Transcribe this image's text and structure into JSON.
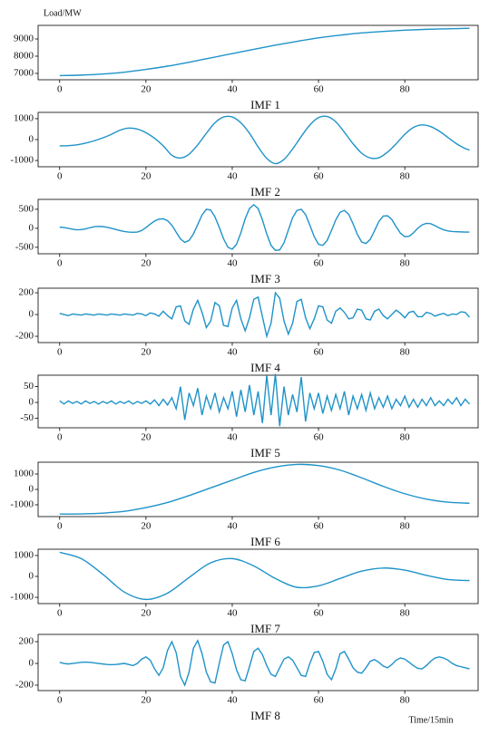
{
  "chart_data": [
    {
      "type": "line",
      "ylabel": "Load/MW",
      "xlabel": "IMF 1",
      "color": "#1f93c9",
      "x": [
        0,
        5,
        10,
        15,
        20,
        25,
        30,
        35,
        40,
        45,
        50,
        55,
        60,
        65,
        70,
        75,
        80,
        85,
        90,
        95
      ],
      "values": [
        6870,
        6900,
        6960,
        7070,
        7230,
        7420,
        7650,
        7900,
        8150,
        8400,
        8640,
        8860,
        9060,
        9220,
        9350,
        9440,
        9510,
        9560,
        9590,
        9620
      ],
      "xlim": [
        -5,
        97
      ],
      "xticks": [
        0,
        20,
        40,
        60,
        80
      ],
      "ylim": [
        6630,
        9790
      ],
      "yticks": [
        7000,
        8000,
        9000
      ]
    },
    {
      "type": "line",
      "xlabel": "IMF 2",
      "color": "#1f93c9",
      "x": [
        0,
        2,
        4,
        6,
        8,
        10,
        12,
        14,
        16,
        18,
        20,
        22,
        24,
        26,
        28,
        30,
        32,
        34,
        36,
        38,
        40,
        42,
        44,
        46,
        48,
        50,
        52,
        54,
        56,
        58,
        60,
        62,
        64,
        66,
        68,
        70,
        72,
        74,
        76,
        78,
        80,
        82,
        84,
        86,
        88,
        90,
        92,
        94,
        95
      ],
      "values": [
        -300,
        -290,
        -250,
        -170,
        -60,
        80,
        250,
        450,
        550,
        500,
        330,
        60,
        -300,
        -750,
        -880,
        -700,
        -250,
        300,
        800,
        1080,
        1080,
        800,
        300,
        -350,
        -900,
        -1150,
        -950,
        -450,
        150,
        700,
        1050,
        1100,
        850,
        350,
        -200,
        -650,
        -880,
        -870,
        -600,
        -200,
        250,
        580,
        700,
        620,
        400,
        100,
        -200,
        -430,
        -500
      ],
      "xlim": [
        -5,
        97
      ],
      "xticks": [
        0,
        20,
        40,
        60,
        80
      ],
      "ylim": [
        -1300,
        1300
      ],
      "yticks": [
        -1000,
        0,
        1000
      ]
    },
    {
      "type": "line",
      "xlabel": "IMF 3",
      "color": "#1f93c9",
      "x": [
        0,
        1,
        2,
        3,
        4,
        5,
        6,
        7,
        8,
        9,
        10,
        11,
        12,
        13,
        14,
        15,
        16,
        17,
        18,
        19,
        20,
        21,
        22,
        23,
        24,
        25,
        26,
        27,
        28,
        29,
        30,
        31,
        32,
        33,
        34,
        35,
        36,
        37,
        38,
        39,
        40,
        41,
        42,
        43,
        44,
        45,
        46,
        47,
        48,
        49,
        50,
        51,
        52,
        53,
        54,
        55,
        56,
        57,
        58,
        59,
        60,
        61,
        62,
        63,
        64,
        65,
        66,
        67,
        68,
        69,
        70,
        71,
        72,
        73,
        74,
        75,
        76,
        77,
        78,
        79,
        80,
        81,
        82,
        83,
        84,
        85,
        86,
        87,
        88,
        89,
        90,
        91,
        92,
        93,
        94,
        95
      ],
      "values": [
        30,
        20,
        0,
        -25,
        -40,
        -35,
        -15,
        15,
        40,
        50,
        45,
        25,
        0,
        -30,
        -60,
        -85,
        -100,
        -105,
        -100,
        -60,
        20,
        110,
        190,
        240,
        250,
        200,
        80,
        -100,
        -280,
        -370,
        -320,
        -150,
        100,
        350,
        500,
        480,
        300,
        20,
        -280,
        -500,
        -550,
        -420,
        -120,
        250,
        520,
        620,
        520,
        220,
        -150,
        -450,
        -580,
        -570,
        -380,
        -50,
        280,
        470,
        500,
        360,
        80,
        -220,
        -420,
        -450,
        -320,
        -60,
        220,
        420,
        470,
        370,
        120,
        -160,
        -360,
        -400,
        -290,
        -60,
        180,
        320,
        330,
        230,
        40,
        -130,
        -220,
        -210,
        -120,
        0,
        90,
        130,
        120,
        70,
        10,
        -40,
        -70,
        -85,
        -90,
        -95,
        -100,
        -100
      ],
      "xlim": [
        -5,
        97
      ],
      "xticks": [
        0,
        20,
        40,
        60,
        80
      ],
      "ylim": [
        -670,
        760
      ],
      "yticks": [
        -500,
        0,
        500
      ]
    },
    {
      "type": "line",
      "xlabel": "IMF 4",
      "color": "#1f93c9",
      "x": [
        0,
        1,
        2,
        3,
        4,
        5,
        6,
        7,
        8,
        9,
        10,
        11,
        12,
        13,
        14,
        15,
        16,
        17,
        18,
        19,
        20,
        21,
        22,
        23,
        24,
        25,
        26,
        27,
        28,
        29,
        30,
        31,
        32,
        33,
        34,
        35,
        36,
        37,
        38,
        39,
        40,
        41,
        42,
        43,
        44,
        45,
        46,
        47,
        48,
        49,
        50,
        51,
        52,
        53,
        54,
        55,
        56,
        57,
        58,
        59,
        60,
        61,
        62,
        63,
        64,
        65,
        66,
        67,
        68,
        69,
        70,
        71,
        72,
        73,
        74,
        75,
        76,
        77,
        78,
        79,
        80,
        81,
        82,
        83,
        84,
        85,
        86,
        87,
        88,
        89,
        90,
        91,
        92,
        93,
        94,
        95
      ],
      "values": [
        10,
        0,
        -10,
        5,
        0,
        -5,
        5,
        0,
        -5,
        5,
        0,
        -5,
        5,
        0,
        -5,
        5,
        0,
        -5,
        10,
        5,
        -10,
        15,
        5,
        -15,
        30,
        -10,
        -40,
        70,
        80,
        -60,
        -90,
        50,
        130,
        20,
        -120,
        -60,
        110,
        80,
        -100,
        -110,
        60,
        130,
        -40,
        -150,
        -30,
        140,
        160,
        -20,
        -200,
        -80,
        200,
        150,
        -60,
        -180,
        -80,
        120,
        140,
        -30,
        -130,
        -40,
        80,
        70,
        -50,
        -80,
        30,
        60,
        20,
        -40,
        -30,
        50,
        40,
        -40,
        -50,
        30,
        50,
        -10,
        -40,
        0,
        40,
        10,
        -30,
        20,
        30,
        -20,
        -20,
        20,
        10,
        -15,
        0,
        10,
        -10,
        5,
        0,
        25,
        20,
        -25
      ],
      "xlim": [
        -5,
        97
      ],
      "xticks": [
        0,
        20,
        40,
        60,
        80
      ],
      "ylim": [
        -258,
        242
      ],
      "yticks": [
        -200,
        0,
        200
      ]
    },
    {
      "type": "line",
      "xlabel": "IMF 5",
      "color": "#1f93c9",
      "x": [
        0,
        1,
        2,
        3,
        4,
        5,
        6,
        7,
        8,
        9,
        10,
        11,
        12,
        13,
        14,
        15,
        16,
        17,
        18,
        19,
        20,
        21,
        22,
        23,
        24,
        25,
        26,
        27,
        28,
        29,
        30,
        31,
        32,
        33,
        34,
        35,
        36,
        37,
        38,
        39,
        40,
        41,
        42,
        43,
        44,
        45,
        46,
        47,
        48,
        49,
        50,
        51,
        52,
        53,
        54,
        55,
        56,
        57,
        58,
        59,
        60,
        61,
        62,
        63,
        64,
        65,
        66,
        67,
        68,
        69,
        70,
        71,
        72,
        73,
        74,
        75,
        76,
        77,
        78,
        79,
        80,
        81,
        82,
        83,
        84,
        85,
        86,
        87,
        88,
        89,
        90,
        91,
        92,
        93,
        94,
        95
      ],
      "values": [
        5,
        -5,
        5,
        -3,
        3,
        -5,
        5,
        -3,
        3,
        -5,
        3,
        -3,
        5,
        -5,
        3,
        -3,
        5,
        -5,
        3,
        -3,
        5,
        -5,
        8,
        -10,
        10,
        -8,
        15,
        -20,
        50,
        -55,
        30,
        -10,
        45,
        -40,
        20,
        -20,
        30,
        -30,
        15,
        -20,
        35,
        -45,
        40,
        -30,
        55,
        -40,
        35,
        -65,
        85,
        -40,
        90,
        -75,
        50,
        -40,
        25,
        -30,
        80,
        -60,
        30,
        -20,
        30,
        -35,
        20,
        -25,
        25,
        -20,
        35,
        -40,
        20,
        -20,
        25,
        -25,
        30,
        -20,
        15,
        -15,
        20,
        -20,
        10,
        -10,
        20,
        -15,
        10,
        -15,
        10,
        -10,
        15,
        -10,
        5,
        -10,
        10,
        -5,
        15,
        -10,
        10,
        -5
      ],
      "xlim": [
        -5,
        97
      ],
      "xticks": [
        0,
        20,
        40,
        60,
        80
      ],
      "ylim": [
        -80,
        86
      ],
      "yticks": [
        -50,
        0,
        50
      ]
    },
    {
      "type": "line",
      "xlabel": "IMF 6",
      "color": "#1f93c9",
      "x": [
        0,
        5,
        10,
        15,
        20,
        25,
        30,
        35,
        40,
        45,
        50,
        55,
        60,
        65,
        70,
        75,
        80,
        85,
        90,
        95
      ],
      "values": [
        -1600,
        -1590,
        -1540,
        -1420,
        -1180,
        -850,
        -400,
        100,
        600,
        1100,
        1450,
        1620,
        1550,
        1250,
        750,
        200,
        -280,
        -630,
        -830,
        -900
      ],
      "xlim": [
        -5,
        97
      ],
      "xticks": [
        0,
        20,
        40,
        60,
        80
      ],
      "ylim": [
        -1765,
        1765
      ],
      "yticks": [
        -1000,
        0,
        1000
      ]
    },
    {
      "type": "line",
      "xlabel": "IMF 7",
      "color": "#1f93c9",
      "x": [
        0,
        5,
        10,
        15,
        20,
        25,
        30,
        35,
        40,
        45,
        50,
        55,
        60,
        65,
        70,
        75,
        80,
        85,
        90,
        95
      ],
      "values": [
        1150,
        850,
        100,
        -750,
        -1100,
        -800,
        -50,
        650,
        850,
        500,
        -100,
        -520,
        -450,
        -100,
        250,
        400,
        300,
        50,
        -150,
        -200
      ],
      "xlim": [
        -5,
        97
      ],
      "xticks": [
        0,
        20,
        40,
        60,
        80
      ],
      "ylim": [
        -1300,
        1300
      ],
      "yticks": [
        -1000,
        0,
        1000
      ]
    },
    {
      "type": "line",
      "xlabel": "IMF 8",
      "note": "Time/15min",
      "color": "#1f93c9",
      "x": [
        0,
        1,
        2,
        3,
        4,
        5,
        6,
        7,
        8,
        9,
        10,
        11,
        12,
        13,
        14,
        15,
        16,
        17,
        18,
        19,
        20,
        21,
        22,
        23,
        24,
        25,
        26,
        27,
        28,
        29,
        30,
        31,
        32,
        33,
        34,
        35,
        36,
        37,
        38,
        39,
        40,
        41,
        42,
        43,
        44,
        45,
        46,
        47,
        48,
        49,
        50,
        51,
        52,
        53,
        54,
        55,
        56,
        57,
        58,
        59,
        60,
        61,
        62,
        63,
        64,
        65,
        66,
        67,
        68,
        69,
        70,
        71,
        72,
        73,
        74,
        75,
        76,
        77,
        78,
        79,
        80,
        81,
        82,
        83,
        84,
        85,
        86,
        87,
        88,
        89,
        90,
        91,
        92,
        93,
        94,
        95
      ],
      "values": [
        10,
        0,
        -5,
        0,
        5,
        10,
        12,
        10,
        5,
        0,
        -5,
        -10,
        -12,
        -10,
        -5,
        0,
        -10,
        -20,
        0,
        40,
        60,
        30,
        -50,
        -110,
        -40,
        120,
        200,
        100,
        -120,
        -200,
        -80,
        140,
        210,
        90,
        -80,
        -170,
        -180,
        0,
        170,
        200,
        90,
        -60,
        -150,
        -160,
        -30,
        110,
        140,
        80,
        -20,
        -100,
        -120,
        -40,
        40,
        60,
        30,
        -40,
        -110,
        -120,
        0,
        100,
        110,
        20,
        -100,
        -150,
        -50,
        90,
        110,
        40,
        -40,
        -80,
        -90,
        -40,
        20,
        35,
        10,
        -25,
        -40,
        -10,
        30,
        50,
        40,
        10,
        -20,
        -45,
        -50,
        -20,
        20,
        50,
        60,
        50,
        30,
        0,
        -20,
        -30,
        -40,
        -50
      ],
      "xlim": [
        -5,
        97
      ],
      "xticks": [
        0,
        20,
        40,
        60,
        80
      ],
      "ylim": [
        -250,
        267
      ],
      "yticks": [
        -200,
        0,
        200
      ]
    }
  ]
}
